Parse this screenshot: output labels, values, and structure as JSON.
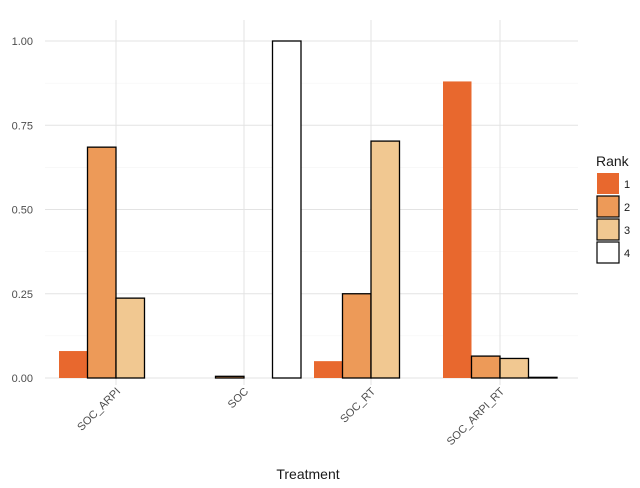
{
  "chart_data": {
    "type": "bar",
    "xlabel": "Treatment",
    "ylabel": "",
    "ylim": [
      0,
      1
    ],
    "yticks": [
      "0.00",
      "0.25",
      "0.50",
      "0.75",
      "1.00"
    ],
    "grid": true,
    "legend_position": "right",
    "categories": [
      "SOC_ARPI",
      "SOC",
      "SOC_RT",
      "SOC_ARPI_RT"
    ],
    "legend": {
      "title": "Rank",
      "series": [
        {
          "name": "1",
          "color": "#e8682e",
          "outlined": false,
          "values": [
            0.08,
            0.0,
            0.05,
            0.88
          ]
        },
        {
          "name": "2",
          "color": "#ed9a58",
          "outlined": true,
          "values": [
            0.685,
            0.005,
            0.25,
            0.065
          ]
        },
        {
          "name": "3",
          "color": "#f1c891",
          "outlined": true,
          "values": [
            0.237,
            0.0,
            0.703,
            0.058
          ]
        },
        {
          "name": "4",
          "color": "#ffffff",
          "outlined": true,
          "values": [
            0.0,
            1.0,
            0.0,
            0.002
          ]
        }
      ]
    }
  }
}
